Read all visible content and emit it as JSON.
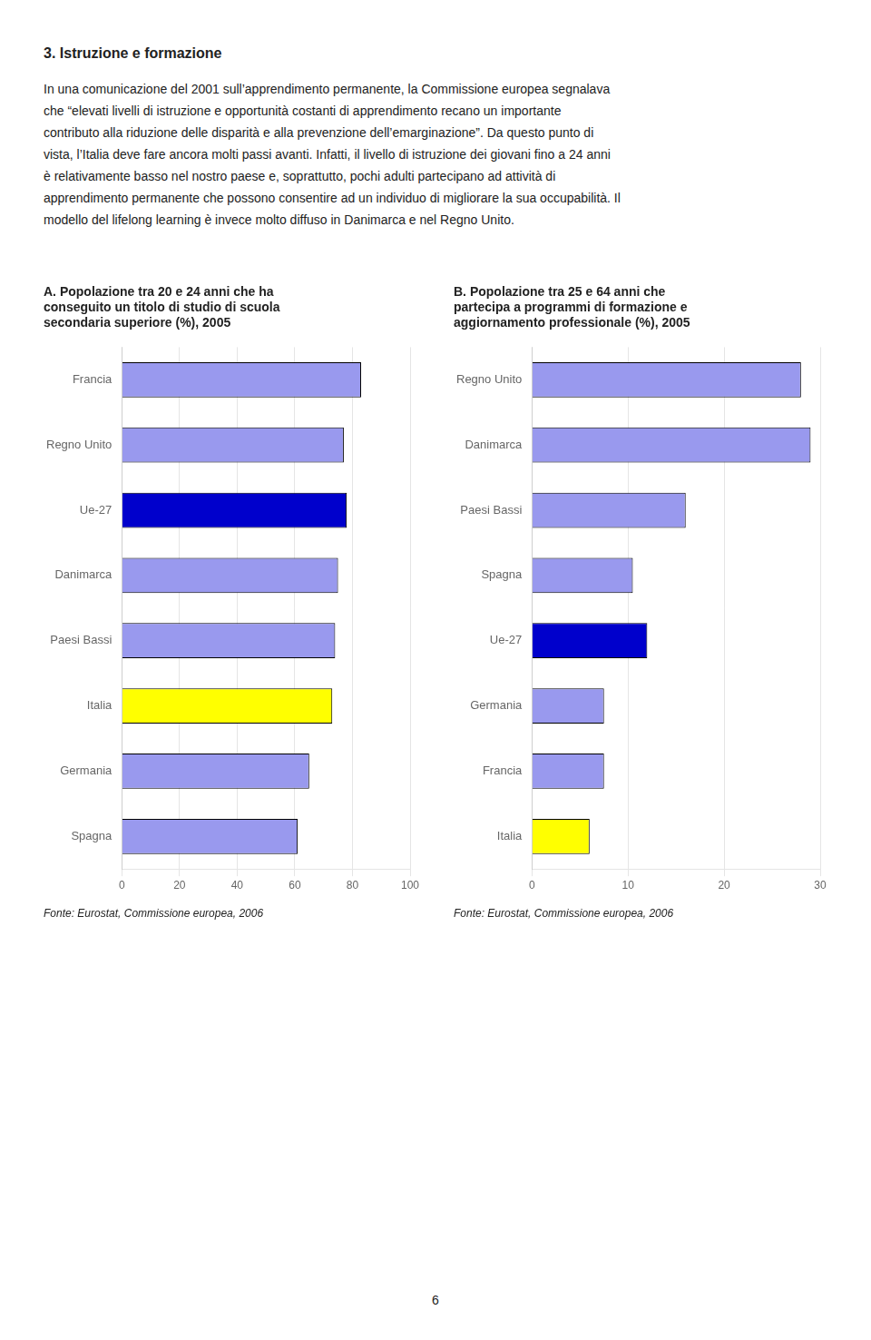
{
  "title": "3. Istruzione e formazione",
  "annotations": [
    "In una comunicazione del 2001 sull’apprendimento permanente, la Commissione europea segnalava",
    "che “elevati livelli di istruzione e opportunità costanti di apprendimento recano un importante",
    "contributo alla riduzione delle disparità e alla prevenzione dell’emarginazione”. Da questo punto di",
    "vista, l’Italia deve fare ancora molti passi avanti. Infatti, il livello di istruzione dei giovani fino a 24 anni",
    "è relativamente basso nel nostro paese e, soprattutto, pochi adulti partecipano ad attività di",
    "apprendimento permanente che possono consentire ad un individuo di migliorare la sua occupabilità. Il",
    "modello del lifelong learning è invece molto diffuso in Danimarca e nel Regno Unito.",
    "6"
  ],
  "chart_data": [
    {
      "type": "bar",
      "orientation": "horizontal",
      "title": [
        "A. Popolazione tra 20 e 24 anni che ha",
        "conseguito un titolo di studio di scuola",
        "secondaria superiore (%), 2005"
      ],
      "categories": [
        "Spagna",
        "Germania",
        "Italia",
        "Paesi Bassi",
        "Danimarca",
        "Ue-27",
        "Regno Unito",
        "Francia"
      ],
      "values": [
        61,
        65,
        73,
        74,
        75,
        78,
        77,
        83
      ],
      "colors": [
        "#9999ee",
        "#9999ee",
        "#ffff00",
        "#9999ee",
        "#9999ee",
        "#0000cc",
        "#9999ee",
        "#9999ee"
      ],
      "xlim": [
        0,
        100
      ],
      "xticks": [
        0,
        20,
        40,
        60,
        80,
        100
      ],
      "grid": true,
      "annotations": [
        "Fonte: Eurostat, Commissione europea, 2006"
      ]
    },
    {
      "type": "bar",
      "orientation": "horizontal",
      "title": [
        "B. Popolazione tra 25 e 64 anni che",
        "partecipa a programmi di formazione e",
        "aggiornamento professionale (%), 2005"
      ],
      "categories": [
        "Italia",
        "Francia",
        "Germania",
        "Ue-27",
        "Spagna",
        "Paesi Bassi",
        "Danimarca",
        "Regno Unito"
      ],
      "values": [
        6.0,
        7.5,
        7.5,
        12.0,
        10.5,
        16.0,
        29.0,
        28.0
      ],
      "colors": [
        "#ffff00",
        "#9999ee",
        "#9999ee",
        "#0000cc",
        "#9999ee",
        "#9999ee",
        "#9999ee",
        "#9999ee"
      ],
      "xlim": [
        0,
        30
      ],
      "xticks": [
        0,
        10,
        20,
        30
      ],
      "grid": true,
      "annotations": [
        "Fonte: Eurostat, Commissione europea, 2006"
      ]
    }
  ]
}
